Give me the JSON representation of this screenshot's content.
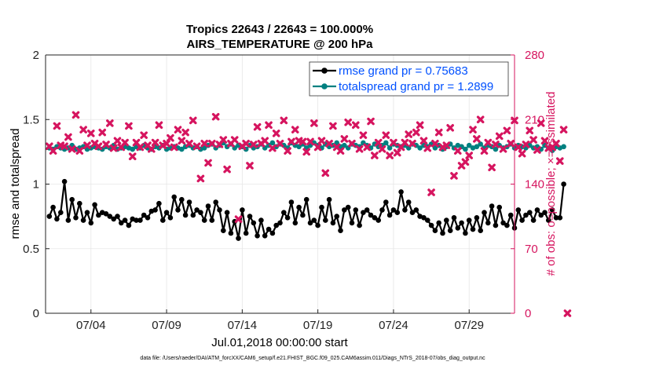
{
  "chart_data": {
    "type": "line",
    "title": "Tropics 22643 / 22643 = 100.000%",
    "subtitle": "AIRS_TEMPERATURE @ 200 hPa",
    "xlabel": "Jul.01,2018 00:00:00 start",
    "ylabel": "rmse and totalspread",
    "y2label": "# of obs: o=possible; ×=assimilated",
    "footnote": "data file: /Users/raeder/DAI/ATM_forcXX/CAM6_setup/f.e21.FHIST_BGC.f09_025.CAM6assim.011/Diags_NTrS_2018-07/obs_diag_output.nc",
    "xlim": [
      1.0,
      32.0
    ],
    "ylim": [
      0,
      2
    ],
    "y2lim": [
      0,
      280
    ],
    "x_ticks": [
      4,
      9,
      14,
      19,
      24,
      29
    ],
    "x_tick_labels": [
      "07/04",
      "07/09",
      "07/14",
      "07/19",
      "07/24",
      "07/29"
    ],
    "y_ticks": [
      0,
      0.5,
      1,
      1.5,
      2
    ],
    "y_tick_labels": [
      "0",
      "0.5",
      "1",
      "1.5",
      "2"
    ],
    "y2_ticks": [
      0,
      70,
      140,
      210,
      280
    ],
    "y2_tick_labels": [
      "0",
      "70",
      "140",
      "210",
      "280"
    ],
    "grid": true,
    "legend_position": "top-right",
    "colors": {
      "rmse": "#000000",
      "spread": "#008080",
      "obs": "#d6155f",
      "grid": "#e6e6e6",
      "axis": "#222222",
      "legend_text": "#0050ff"
    },
    "series": [
      {
        "name": "rmse grand pr = 0.75683",
        "axis": "left",
        "x_start": 1.25,
        "x_step": 0.25,
        "values": [
          0.75,
          0.82,
          0.73,
          0.78,
          1.02,
          0.72,
          0.88,
          0.74,
          0.85,
          0.72,
          0.78,
          0.7,
          0.84,
          0.76,
          0.78,
          0.77,
          0.75,
          0.73,
          0.75,
          0.7,
          0.72,
          0.68,
          0.73,
          0.72,
          0.72,
          0.76,
          0.74,
          0.79,
          0.8,
          0.85,
          0.72,
          0.78,
          0.74,
          0.9,
          0.8,
          0.88,
          0.76,
          0.86,
          0.76,
          0.8,
          0.78,
          0.72,
          0.83,
          0.72,
          0.86,
          0.8,
          0.64,
          0.78,
          0.62,
          0.71,
          0.58,
          0.8,
          0.62,
          0.75,
          0.7,
          0.6,
          0.72,
          0.6,
          0.65,
          0.62,
          0.68,
          0.7,
          0.78,
          0.74,
          0.86,
          0.7,
          0.82,
          0.76,
          0.88,
          0.7,
          0.72,
          0.68,
          0.82,
          0.72,
          0.88,
          0.7,
          0.75,
          0.64,
          0.8,
          0.82,
          0.7,
          0.8,
          0.68,
          0.78,
          0.8,
          0.76,
          0.74,
          0.72,
          0.8,
          0.86,
          0.76,
          0.8,
          0.78,
          0.94,
          0.8,
          0.86,
          0.78,
          0.8,
          0.75,
          0.74,
          0.72,
          0.68,
          0.64,
          0.7,
          0.62,
          0.72,
          0.64,
          0.74,
          0.66,
          0.7,
          0.62,
          0.72,
          0.65,
          0.74,
          0.64,
          0.78,
          0.7,
          0.83,
          0.68,
          0.82,
          0.7,
          0.68,
          0.76,
          0.66,
          0.8,
          0.72,
          0.76,
          0.78,
          0.72,
          0.8,
          0.76,
          0.78,
          0.72,
          0.8,
          0.74,
          0.74,
          1.0
        ]
      },
      {
        "name": "totalspread grand pr = 1.2899",
        "axis": "left",
        "x_start": 1.25,
        "x_step": 0.25,
        "values": [
          1.28,
          1.27,
          1.29,
          1.28,
          1.27,
          1.28,
          1.3,
          1.27,
          1.28,
          1.29,
          1.27,
          1.28,
          1.29,
          1.28,
          1.27,
          1.29,
          1.28,
          1.3,
          1.27,
          1.28,
          1.29,
          1.28,
          1.27,
          1.29,
          1.28,
          1.3,
          1.28,
          1.27,
          1.29,
          1.28,
          1.3,
          1.27,
          1.28,
          1.29,
          1.28,
          1.27,
          1.29,
          1.3,
          1.28,
          1.29,
          1.27,
          1.28,
          1.3,
          1.31,
          1.28,
          1.3,
          1.32,
          1.29,
          1.31,
          1.28,
          1.3,
          1.29,
          1.27,
          1.3,
          1.28,
          1.29,
          1.31,
          1.28,
          1.3,
          1.32,
          1.29,
          1.31,
          1.3,
          1.28,
          1.32,
          1.3,
          1.29,
          1.31,
          1.28,
          1.3,
          1.32,
          1.3,
          1.28,
          1.31,
          1.29,
          1.3,
          1.32,
          1.29,
          1.3,
          1.28,
          1.31,
          1.3,
          1.29,
          1.32,
          1.3,
          1.28,
          1.31,
          1.29,
          1.3,
          1.32,
          1.28,
          1.31,
          1.3,
          1.29,
          1.3,
          1.28,
          1.31,
          1.3,
          1.28,
          1.3,
          1.29,
          1.31,
          1.28,
          1.3,
          1.27,
          1.29,
          1.31,
          1.28,
          1.3,
          1.29,
          1.27,
          1.3,
          1.28,
          1.29,
          1.31,
          1.28,
          1.3,
          1.29,
          1.27,
          1.3,
          1.28,
          1.29,
          1.31,
          1.28,
          1.3,
          1.29,
          1.28,
          1.3,
          1.28,
          1.29,
          1.27,
          1.3,
          1.28,
          1.26,
          1.29,
          1.28,
          1.29
        ]
      },
      {
        "name": "# obs assimilated",
        "axis": "right",
        "marker": "x",
        "x_start": 1.25,
        "x_step": 0.25,
        "values": [
          181,
          176,
          203,
          182,
          181,
          191,
          178,
          215,
          176,
          199,
          182,
          195,
          184,
          181,
          196,
          183,
          206,
          179,
          187,
          180,
          185,
          203,
          170,
          185,
          180,
          193,
          182,
          178,
          185,
          204,
          182,
          184,
          190,
          180,
          199,
          187,
          196,
          184,
          209,
          181,
          146,
          184,
          163,
          184,
          213,
          183,
          188,
          156,
          184,
          188,
          102,
          181,
          184,
          160,
          183,
          202,
          184,
          187,
          204,
          179,
          195,
          184,
          209,
          176,
          186,
          199,
          187,
          186,
          175,
          186,
          206,
          180,
          187,
          152,
          184,
          203,
          180,
          176,
          189,
          207,
          184,
          204,
          178,
          193,
          180,
          208,
          171,
          185,
          178,
          193,
          171,
          185,
          174,
          180,
          185,
          194,
          184,
          196,
          204,
          187,
          179,
          131,
          184,
          196,
          180,
          182,
          201,
          149,
          176,
          160,
          164,
          171,
          199,
          189,
          210,
          176,
          185,
          158,
          183,
          192,
          178,
          198,
          184,
          209,
          180,
          173,
          183,
          198,
          188,
          177,
          206,
          187,
          179,
          180,
          184,
          165,
          199,
          0
        ]
      }
    ]
  }
}
